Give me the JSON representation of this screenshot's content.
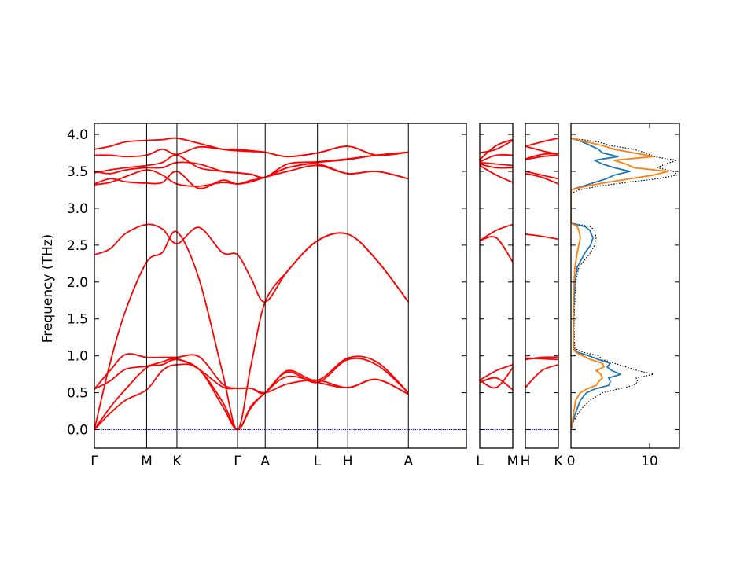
{
  "chart_data": [
    {
      "type": "line",
      "panel": "band-structure-main",
      "ylabel": "Frequency (THz)",
      "ylim": [
        -0.25,
        4.15
      ],
      "y_ticks": [
        "0.0",
        "0.5",
        "1.0",
        "1.5",
        "2.0",
        "2.5",
        "3.0",
        "3.5",
        "4.0"
      ],
      "y_tick_values": [
        0.0,
        0.5,
        1.0,
        1.5,
        2.0,
        2.5,
        3.0,
        3.5,
        4.0
      ],
      "xlim": [
        0,
        7.12
      ],
      "x_ticks": [
        {
          "label": "Γ",
          "x": 0
        },
        {
          "label": "M",
          "x": 1.0
        },
        {
          "label": "K",
          "x": 1.58
        },
        {
          "label": "Γ",
          "x": 2.74
        },
        {
          "label": "A",
          "x": 3.27
        },
        {
          "label": "L",
          "x": 4.27
        },
        {
          "label": "H",
          "x": 4.85
        },
        {
          "label": "A",
          "x": 6.01
        }
      ],
      "zero_line": {
        "y": 0,
        "color": "#0000ff"
      },
      "series": [
        {
          "color": "#ff0000",
          "x": [
            0,
            0.3,
            0.6,
            1.0,
            1.3,
            1.58,
            2.0,
            2.45,
            2.74,
            3.0,
            3.27,
            3.7,
            4.27,
            4.85,
            5.4,
            6.01
          ],
          "y": [
            0.0,
            0.22,
            0.4,
            0.54,
            0.8,
            0.88,
            0.82,
            0.32,
            0.0,
            0.3,
            0.5,
            0.72,
            0.64,
            0.57,
            0.68,
            0.48
          ]
        },
        {
          "color": "#ff0000",
          "x": [
            0,
            0.3,
            0.6,
            1.0,
            1.3,
            1.58,
            2.0,
            2.45,
            2.74,
            3.0,
            3.27,
            3.7,
            4.27,
            4.85,
            5.4,
            6.01
          ],
          "y": [
            0.0,
            0.3,
            0.55,
            0.84,
            0.88,
            0.95,
            0.82,
            0.38,
            0.0,
            0.32,
            0.5,
            0.78,
            0.64,
            0.95,
            0.88,
            0.5
          ]
        },
        {
          "color": "#ff0000",
          "x": [
            0,
            0.3,
            0.6,
            1.0,
            1.3,
            1.58,
            2.0,
            2.45,
            2.74,
            3.0,
            3.27,
            3.7,
            4.27,
            4.85,
            5.4,
            6.01
          ],
          "y": [
            0.55,
            0.8,
            1.02,
            0.98,
            0.98,
            0.98,
            0.99,
            0.62,
            0.56,
            0.56,
            0.5,
            0.62,
            0.67,
            0.57,
            0.68,
            0.48
          ]
        },
        {
          "color": "#ff0000",
          "x": [
            0,
            0.3,
            0.6,
            1.0,
            1.3,
            1.58,
            2.0,
            2.45,
            2.74,
            3.0,
            3.27,
            3.7,
            4.27,
            4.85,
            5.4,
            6.01
          ],
          "y": [
            0.55,
            0.66,
            0.82,
            0.86,
            0.92,
            0.96,
            0.82,
            0.58,
            0.56,
            0.56,
            0.5,
            0.8,
            0.67,
            0.97,
            0.92,
            0.5
          ]
        },
        {
          "color": "#ff0000",
          "x": [
            0,
            0.3,
            0.6,
            1.0,
            1.3,
            1.58,
            2.0,
            2.45,
            2.74,
            3.0,
            3.27,
            3.7,
            4.27,
            4.85,
            5.4,
            6.01
          ],
          "y": [
            0.0,
            0.9,
            1.62,
            2.27,
            2.4,
            2.68,
            2.05,
            0.78,
            0.0,
            0.88,
            1.73,
            2.15,
            2.56,
            2.65,
            2.3,
            1.73
          ]
        },
        {
          "color": "#ff0000",
          "x": [
            0,
            0.3,
            0.6,
            1.0,
            1.3,
            1.58,
            2.0,
            2.45,
            2.74,
            3.0,
            3.27,
            3.7,
            4.27,
            4.85,
            5.4,
            6.01
          ],
          "y": [
            2.37,
            2.45,
            2.66,
            2.78,
            2.72,
            2.52,
            2.74,
            2.4,
            2.37,
            2.05,
            1.73,
            2.15,
            2.56,
            2.65,
            2.3,
            1.73
          ]
        },
        {
          "color": "#ff0000",
          "x": [
            0,
            0.3,
            0.6,
            1.0,
            1.3,
            1.58,
            2.0,
            2.45,
            2.74,
            3.0,
            3.27,
            3.7,
            4.27,
            4.85,
            5.4,
            6.01
          ],
          "y": [
            3.32,
            3.35,
            3.43,
            3.52,
            3.45,
            3.33,
            3.3,
            3.35,
            3.33,
            3.36,
            3.42,
            3.5,
            3.58,
            3.47,
            3.5,
            3.4
          ]
        },
        {
          "color": "#ff0000",
          "x": [
            0,
            0.3,
            0.6,
            1.0,
            1.3,
            1.58,
            2.0,
            2.45,
            2.74,
            3.0,
            3.27,
            3.7,
            4.27,
            4.85,
            5.4,
            6.01
          ],
          "y": [
            3.33,
            3.4,
            3.36,
            3.34,
            3.35,
            3.5,
            3.27,
            3.38,
            3.33,
            3.38,
            3.42,
            3.55,
            3.6,
            3.47,
            3.5,
            3.4
          ]
        },
        {
          "color": "#ff0000",
          "x": [
            0,
            0.3,
            0.6,
            1.0,
            1.3,
            1.58,
            2.0,
            2.45,
            2.74,
            3.0,
            3.27,
            3.7,
            4.27,
            4.85,
            5.4,
            6.01
          ],
          "y": [
            3.48,
            3.52,
            3.55,
            3.58,
            3.62,
            3.72,
            3.55,
            3.5,
            3.48,
            3.46,
            3.42,
            3.55,
            3.62,
            3.66,
            3.72,
            3.76
          ]
        },
        {
          "color": "#ff0000",
          "x": [
            0,
            0.3,
            0.6,
            1.0,
            1.3,
            1.58,
            2.0,
            2.45,
            2.74,
            3.0,
            3.27,
            3.7,
            4.27,
            4.85,
            5.4,
            6.01
          ],
          "y": [
            3.5,
            3.47,
            3.52,
            3.55,
            3.55,
            3.62,
            3.6,
            3.5,
            3.48,
            3.46,
            3.42,
            3.6,
            3.63,
            3.67,
            3.72,
            3.76
          ]
        },
        {
          "color": "#ff0000",
          "x": [
            0,
            0.3,
            0.6,
            1.0,
            1.3,
            1.58,
            2.0,
            2.45,
            2.74,
            3.0,
            3.27,
            3.7,
            4.27,
            4.85,
            5.4,
            6.01
          ],
          "y": [
            3.72,
            3.72,
            3.7,
            3.72,
            3.8,
            3.73,
            3.83,
            3.8,
            3.8,
            3.78,
            3.76,
            3.7,
            3.75,
            3.84,
            3.72,
            3.76
          ]
        },
        {
          "color": "#ff0000",
          "x": [
            0,
            0.3,
            0.6,
            1.0,
            1.3,
            1.58,
            2.0,
            2.45,
            2.74,
            3.0,
            3.27,
            3.7,
            4.27,
            4.85,
            5.4,
            6.01
          ],
          "y": [
            3.8,
            3.84,
            3.9,
            3.92,
            3.93,
            3.95,
            3.88,
            3.8,
            3.78,
            3.77,
            3.76,
            3.7,
            3.75,
            3.84,
            3.72,
            3.76
          ]
        }
      ]
    },
    {
      "type": "line",
      "panel": "band-structure-L-M",
      "ylim": [
        -0.25,
        4.15
      ],
      "x_ticks": [
        {
          "label": "L",
          "x": 0
        },
        {
          "label": "M",
          "x": 1
        }
      ],
      "xlim": [
        0,
        1
      ],
      "zero_line": {
        "y": 0,
        "color": "#0000ff"
      },
      "series": [
        {
          "color": "#ff0000",
          "x": [
            0,
            0.5,
            1
          ],
          "y": [
            0.64,
            0.7,
            0.54
          ]
        },
        {
          "color": "#ff0000",
          "x": [
            0,
            0.5,
            1
          ],
          "y": [
            0.67,
            0.57,
            0.84
          ]
        },
        {
          "color": "#ff0000",
          "x": [
            0,
            0.5,
            1
          ],
          "y": [
            0.67,
            0.8,
            0.88
          ]
        },
        {
          "color": "#ff0000",
          "x": [
            0,
            0.5,
            1
          ],
          "y": [
            2.56,
            2.6,
            2.27
          ]
        },
        {
          "color": "#ff0000",
          "x": [
            0,
            0.5,
            1
          ],
          "y": [
            2.56,
            2.7,
            2.78
          ]
        },
        {
          "color": "#ff0000",
          "x": [
            0,
            0.5,
            1
          ],
          "y": [
            3.58,
            3.45,
            3.35
          ]
        },
        {
          "color": "#ff0000",
          "x": [
            0,
            0.5,
            1
          ],
          "y": [
            3.6,
            3.55,
            3.55
          ]
        },
        {
          "color": "#ff0000",
          "x": [
            0,
            0.5,
            1
          ],
          "y": [
            3.62,
            3.6,
            3.58
          ]
        },
        {
          "color": "#ff0000",
          "x": [
            0,
            0.5,
            1
          ],
          "y": [
            3.63,
            3.72,
            3.72
          ]
        },
        {
          "color": "#ff0000",
          "x": [
            0,
            0.5,
            1
          ],
          "y": [
            3.75,
            3.8,
            3.92
          ]
        },
        {
          "color": "#ff0000",
          "x": [
            0,
            0.5,
            1
          ],
          "y": [
            3.66,
            3.85,
            3.93
          ]
        }
      ]
    },
    {
      "type": "line",
      "panel": "band-structure-H-K",
      "ylim": [
        -0.25,
        4.15
      ],
      "x_ticks": [
        {
          "label": "H",
          "x": 0
        },
        {
          "label": "K",
          "x": 1
        }
      ],
      "xlim": [
        0,
        1
      ],
      "zero_line": {
        "y": 0,
        "color": "#0000ff"
      },
      "series": [
        {
          "color": "#ff0000",
          "x": [
            0,
            0.5,
            1
          ],
          "y": [
            0.57,
            0.8,
            0.88
          ]
        },
        {
          "color": "#ff0000",
          "x": [
            0,
            0.5,
            1
          ],
          "y": [
            0.97,
            0.96,
            0.95
          ]
        },
        {
          "color": "#ff0000",
          "x": [
            0,
            0.5,
            1
          ],
          "y": [
            0.95,
            0.98,
            0.98
          ]
        },
        {
          "color": "#ff0000",
          "x": [
            0,
            0.5,
            1
          ],
          "y": [
            2.65,
            2.62,
            2.58
          ]
        },
        {
          "color": "#ff0000",
          "x": [
            0,
            0.5,
            1
          ],
          "y": [
            3.47,
            3.42,
            3.33
          ]
        },
        {
          "color": "#ff0000",
          "x": [
            0,
            0.5,
            1
          ],
          "y": [
            3.5,
            3.45,
            3.4
          ]
        },
        {
          "color": "#ff0000",
          "x": [
            0,
            0.5,
            1
          ],
          "y": [
            3.66,
            3.7,
            3.72
          ]
        },
        {
          "color": "#ff0000",
          "x": [
            0,
            0.5,
            1
          ],
          "y": [
            3.67,
            3.73,
            3.74
          ]
        },
        {
          "color": "#ff0000",
          "x": [
            0,
            0.5,
            1
          ],
          "y": [
            3.84,
            3.78,
            3.73
          ]
        },
        {
          "color": "#ff0000",
          "x": [
            0,
            0.5,
            1
          ],
          "y": [
            3.84,
            3.9,
            3.95
          ]
        }
      ]
    },
    {
      "type": "line",
      "panel": "density-of-states",
      "ylim": [
        -0.25,
        4.15
      ],
      "xlim": [
        0,
        13.8
      ],
      "x_ticks": [
        {
          "label": "0",
          "x": 0
        },
        {
          "label": "10",
          "x": 10
        }
      ],
      "series": [
        {
          "color": "#000000",
          "style": "dotted",
          "y": [
            0.0,
            0.1,
            0.2,
            0.3,
            0.4,
            0.5,
            0.55,
            0.6,
            0.65,
            0.7,
            0.75,
            0.8,
            0.85,
            0.9,
            0.95,
            1.0,
            1.05,
            1.1,
            1.3,
            1.5,
            1.8,
            2.0,
            2.2,
            2.4,
            2.5,
            2.6,
            2.7,
            2.75,
            2.8,
            3.2,
            3.25,
            3.3,
            3.35,
            3.4,
            3.45,
            3.5,
            3.55,
            3.6,
            3.65,
            3.7,
            3.75,
            3.8,
            3.85,
            3.9,
            3.95
          ],
          "x": [
            0.0,
            0.3,
            0.8,
            1.5,
            2.5,
            4.0,
            6.0,
            8.0,
            8.5,
            8.3,
            10.5,
            8.5,
            7.0,
            5.5,
            4.0,
            3.5,
            1.5,
            0.5,
            0.4,
            0.4,
            0.5,
            0.6,
            1.0,
            2.5,
            3.0,
            3.2,
            3.0,
            2.5,
            0.0,
            0.0,
            1.0,
            3.5,
            7.0,
            11.0,
            13.5,
            13.0,
            11.0,
            12.0,
            13.5,
            10.5,
            9.5,
            8.0,
            5.0,
            3.5,
            0.0
          ]
        },
        {
          "color": "#1f77b4",
          "y": [
            0.0,
            0.2,
            0.4,
            0.5,
            0.55,
            0.6,
            0.65,
            0.7,
            0.75,
            0.8,
            0.85,
            0.9,
            0.95,
            1.0,
            1.05,
            1.1,
            1.3,
            1.5,
            1.8,
            2.0,
            2.2,
            2.4,
            2.5,
            2.6,
            2.7,
            2.75,
            2.8,
            3.25,
            3.3,
            3.35,
            3.4,
            3.45,
            3.5,
            3.55,
            3.6,
            3.65,
            3.7,
            3.75,
            3.8,
            3.85,
            3.9,
            3.95
          ],
          "x": [
            0.0,
            0.5,
            1.2,
            2.0,
            3.0,
            4.8,
            5.0,
            4.8,
            6.3,
            5.2,
            4.6,
            5.0,
            3.5,
            2.3,
            0.8,
            0.3,
            0.3,
            0.3,
            0.4,
            0.5,
            0.8,
            1.8,
            2.5,
            2.8,
            2.4,
            1.8,
            0.0,
            0.0,
            1.5,
            3.0,
            4.5,
            5.5,
            7.5,
            5.5,
            4.0,
            3.0,
            6.0,
            4.0,
            3.5,
            2.5,
            1.5,
            0.0
          ]
        },
        {
          "color": "#ff7f0e",
          "y": [
            0.0,
            0.2,
            0.4,
            0.5,
            0.55,
            0.6,
            0.65,
            0.7,
            0.75,
            0.8,
            0.85,
            0.9,
            0.95,
            1.0,
            1.05,
            1.1,
            1.3,
            1.5,
            1.8,
            2.0,
            2.2,
            2.4,
            2.5,
            2.6,
            2.7,
            2.75,
            2.8,
            3.25,
            3.3,
            3.35,
            3.4,
            3.45,
            3.5,
            3.55,
            3.6,
            3.65,
            3.7,
            3.75,
            3.8,
            3.85,
            3.9,
            3.95
          ],
          "x": [
            0.0,
            0.3,
            0.6,
            1.2,
            2.0,
            3.2,
            3.5,
            4.0,
            3.8,
            3.2,
            4.2,
            4.0,
            2.5,
            1.5,
            0.6,
            0.3,
            0.3,
            0.3,
            0.3,
            0.4,
            0.5,
            0.8,
            1.0,
            1.2,
            1.0,
            0.8,
            0.0,
            0.0,
            2.0,
            4.5,
            7.5,
            10.5,
            12.3,
            8.0,
            7.0,
            5.5,
            10.5,
            8.0,
            5.5,
            4.0,
            2.0,
            0.0
          ]
        }
      ]
    }
  ]
}
